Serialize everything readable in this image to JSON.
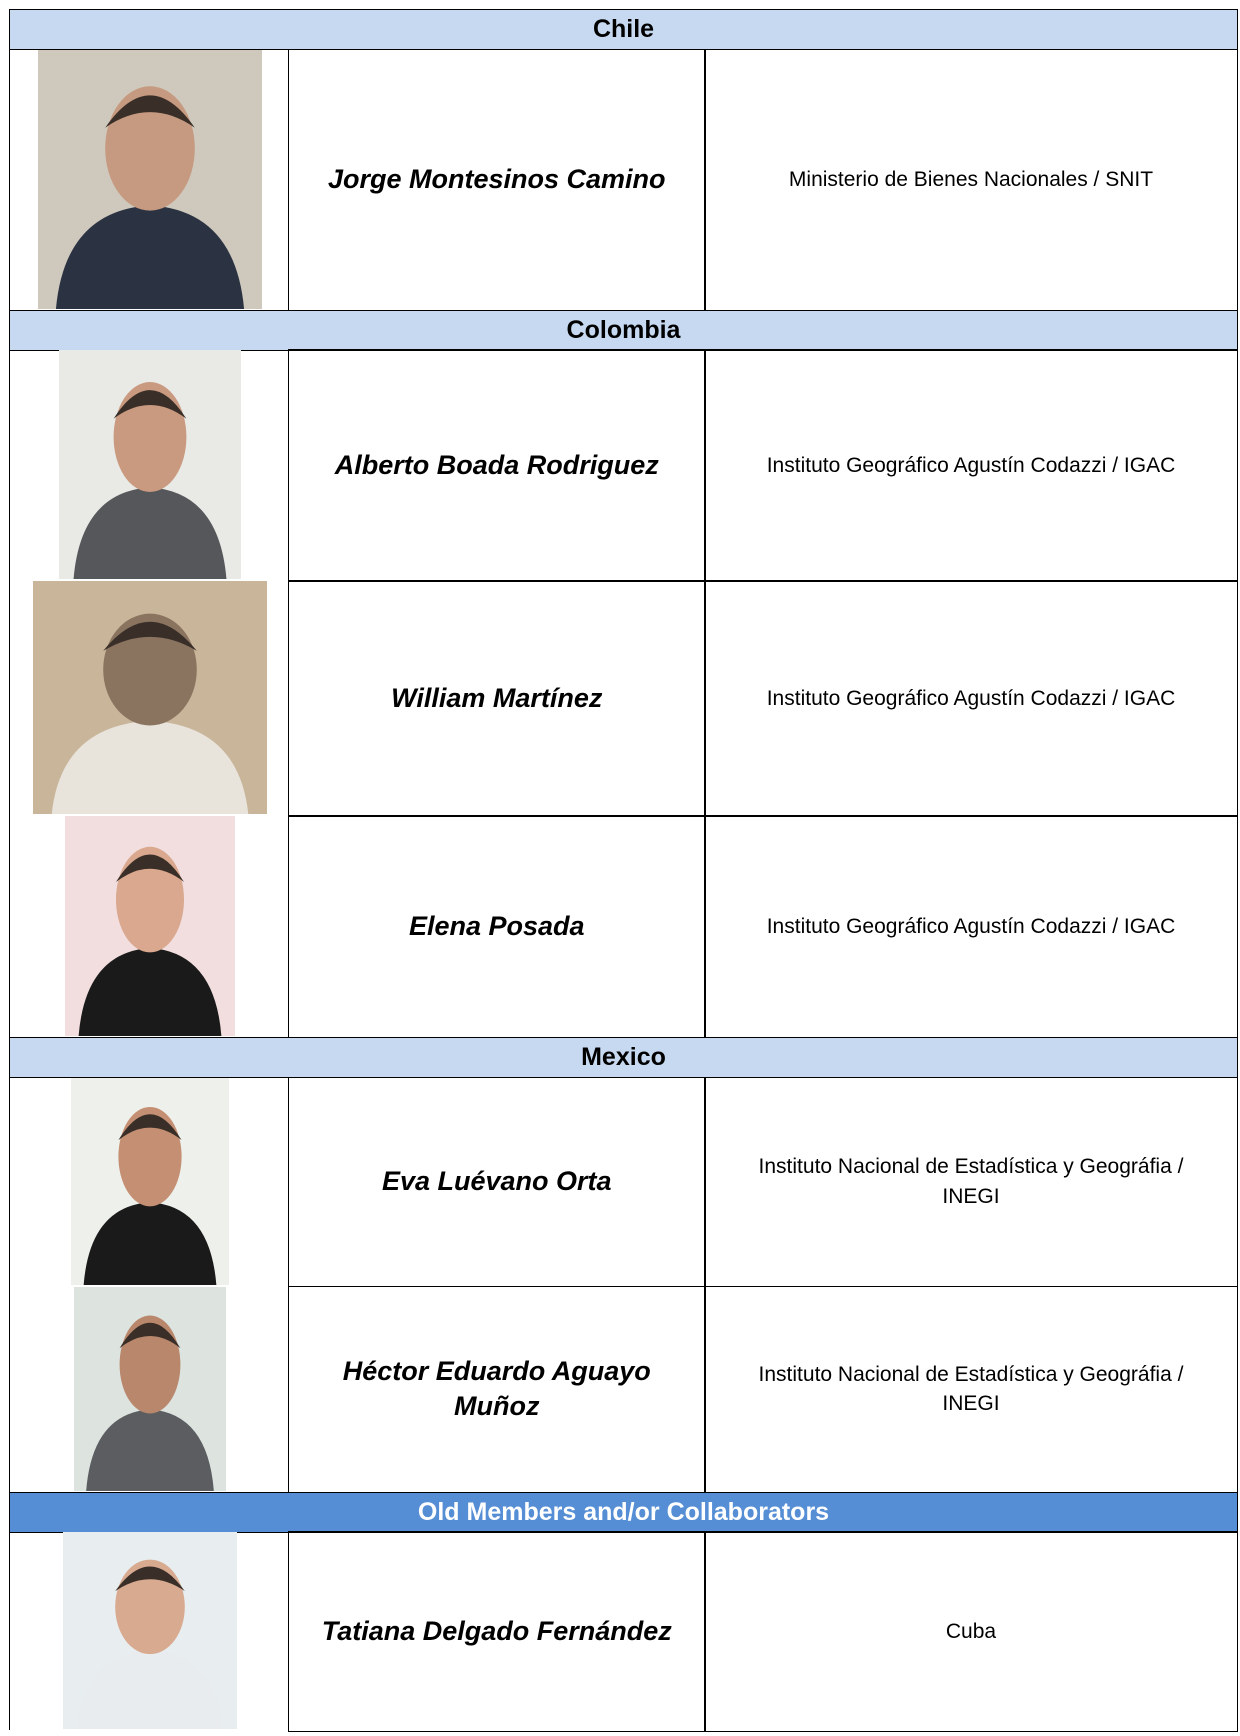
{
  "sections": [
    {
      "title": "Chile",
      "members": [
        {
          "name": "Jorge Montesinos Camino",
          "organization": "Ministerio de Bienes Nacionales / SNIT"
        }
      ]
    },
    {
      "title": "Colombia",
      "members": [
        {
          "name": "Alberto Boada Rodriguez",
          "organization": "Instituto Geográfico Agustín Codazzi / IGAC"
        },
        {
          "name": "William Martínez",
          "organization": "Instituto Geográfico Agustín Codazzi / IGAC"
        },
        {
          "name": "Elena Posada",
          "organization": "Instituto Geográfico Agustín Codazzi / IGAC"
        }
      ]
    },
    {
      "title": "Mexico",
      "members": [
        {
          "name": "Eva Luévano Orta",
          "organization": "Instituto Nacional de Estadística y Geográfia / INEGI"
        },
        {
          "name": "Héctor Eduardo Aguayo Muñoz",
          "organization": "Instituto Nacional de Estadística y Geográfia / INEGI"
        }
      ]
    },
    {
      "title": "Old Members and/or Collaborators",
      "members": [
        {
          "name": "Tatiana Delgado Fernández",
          "organization": "Cuba"
        }
      ]
    }
  ]
}
